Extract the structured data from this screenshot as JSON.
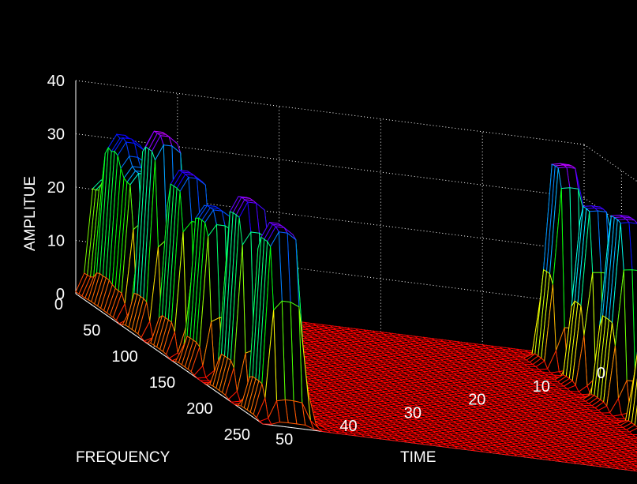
{
  "chart_data": {
    "type": "surface",
    "xlabel": "TIME",
    "ylabel": "FREQUENCY",
    "zlabel": "AMPLITUE",
    "xlim": [
      0,
      50
    ],
    "ylim": [
      0,
      250
    ],
    "zlim": [
      0,
      40
    ],
    "xticks": [
      "0",
      "10",
      "20",
      "30",
      "40",
      "50"
    ],
    "yticks": [
      "0",
      "50",
      "100",
      "150",
      "200",
      "250"
    ],
    "zticks": [
      "0",
      "10",
      "20",
      "30",
      "40"
    ],
    "grid": true,
    "box": true,
    "colormap": [
      "#ff0000",
      "#ffff00",
      "#00ff00",
      "#00ffff",
      "#0000ff",
      "#ff00ff"
    ],
    "background": "#000000",
    "peaks": [
      {
        "time_center": 1,
        "time_width": 4,
        "freq_center": 15,
        "freq_width": 18,
        "amplitude": 22
      },
      {
        "time_center": 5,
        "time_width": 4,
        "freq_center": 15,
        "freq_width": 18,
        "amplitude": 32
      },
      {
        "time_center": 9,
        "time_width": 4,
        "freq_center": 15,
        "freq_width": 18,
        "amplitude": 28
      },
      {
        "time_center": 15,
        "time_width": 5,
        "freq_center": 15,
        "freq_width": 18,
        "amplitude": 38
      },
      {
        "time_center": 22,
        "time_width": 5,
        "freq_center": 15,
        "freq_width": 18,
        "amplitude": 34
      },
      {
        "time_center": 29,
        "time_width": 5,
        "freq_center": 15,
        "freq_width": 18,
        "amplitude": 31
      },
      {
        "time_center": 38,
        "time_width": 5,
        "freq_center": 15,
        "freq_width": 18,
        "amplitude": 37
      },
      {
        "time_center": 46,
        "time_width": 5,
        "freq_center": 15,
        "freq_width": 18,
        "amplitude": 36
      },
      {
        "time_center": 6,
        "time_width": 4,
        "freq_center": 230,
        "freq_width": 18,
        "amplitude": 38
      },
      {
        "time_center": 14,
        "time_width": 4,
        "freq_center": 230,
        "freq_width": 18,
        "amplitude": 34
      },
      {
        "time_center": 22,
        "time_width": 5,
        "freq_center": 230,
        "freq_width": 18,
        "amplitude": 36
      },
      {
        "time_center": 31,
        "time_width": 4,
        "freq_center": 230,
        "freq_width": 18,
        "amplitude": 30
      },
      {
        "time_center": 39,
        "time_width": 4,
        "freq_center": 230,
        "freq_width": 18,
        "amplitude": 33
      },
      {
        "time_center": 46,
        "time_width": 4,
        "freq_center": 230,
        "freq_width": 18,
        "amplitude": 27
      }
    ]
  }
}
